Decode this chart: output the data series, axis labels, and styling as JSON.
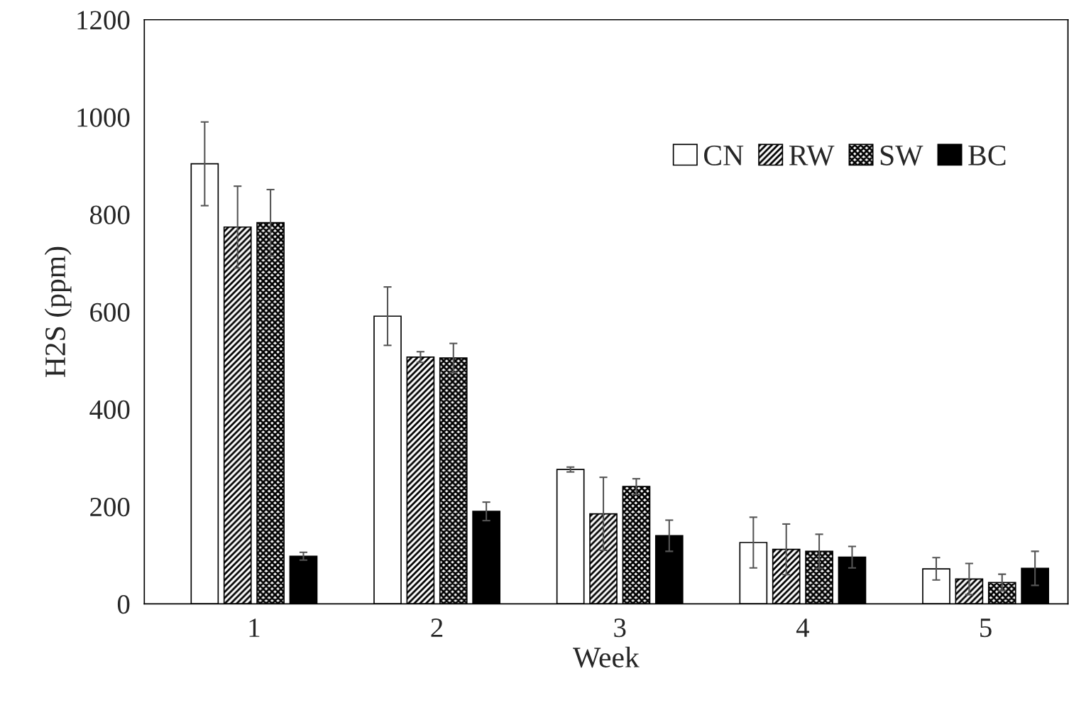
{
  "chart_data": {
    "type": "bar",
    "xlabel": "Week",
    "ylabel": "H2S (ppm)",
    "categories": [
      "1",
      "2",
      "3",
      "4",
      "5"
    ],
    "series": [
      {
        "name": "CN",
        "color": "#ffffff",
        "values": [
          904,
          591,
          276,
          126,
          72
        ],
        "errors": [
          86,
          60,
          5,
          52,
          23
        ]
      },
      {
        "name": "RW",
        "color": "#000000",
        "values": [
          774,
          507,
          185,
          112,
          51
        ],
        "errors": [
          84,
          11,
          75,
          52,
          32
        ]
      },
      {
        "name": "SW",
        "color": "#000000",
        "values": [
          783,
          505,
          241,
          108,
          44
        ],
        "errors": [
          68,
          30,
          16,
          35,
          17
        ]
      },
      {
        "name": "BC",
        "color": "#000000",
        "values": [
          98,
          190,
          140,
          96,
          73
        ],
        "errors": [
          8,
          19,
          32,
          22,
          35
        ]
      }
    ],
    "ylim": [
      0,
      1200
    ],
    "yticks": [
      0,
      200,
      400,
      600,
      800,
      1000,
      1200
    ],
    "grid": false,
    "legend": "top right"
  }
}
